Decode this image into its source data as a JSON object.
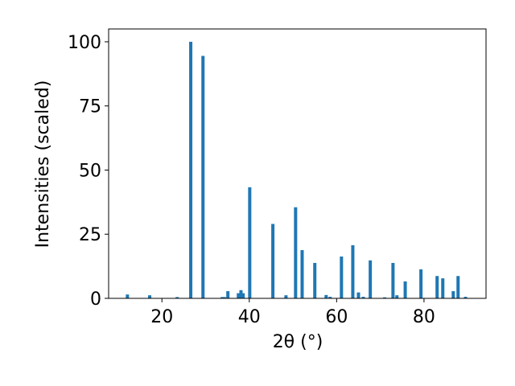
{
  "chart_data": {
    "type": "bar",
    "x_label": "2θ (°)",
    "y_label": "Intensities (scaled)",
    "x": [
      12.1,
      17.2,
      23.5,
      26.6,
      29.4,
      33.8,
      34.3,
      35.1,
      37.5,
      38.1,
      38.6,
      40.1,
      45.4,
      48.4,
      50.6,
      52.1,
      55.0,
      57.6,
      58.5,
      61.1,
      63.7,
      65.0,
      66.1,
      67.7,
      71.0,
      72.9,
      73.8,
      75.7,
      79.3,
      83.0,
      84.3,
      86.7,
      87.8,
      89.5
    ],
    "values": [
      1.5,
      1.2,
      0.5,
      100,
      94.5,
      0.5,
      0.5,
      2.8,
      2,
      3.2,
      2,
      43.3,
      29,
      1.2,
      35.5,
      18.8,
      13.8,
      1.3,
      0.6,
      16.3,
      20.7,
      2.3,
      0.6,
      14.8,
      0.4,
      13.8,
      1.2,
      6.6,
      11.3,
      8.7,
      7.8,
      2.8,
      8.7,
      0.6
    ],
    "color": "#1f77b4",
    "xlim": [
      7.8,
      94.2
    ],
    "xticks": [
      20,
      40,
      60,
      80
    ],
    "ylim": [
      0,
      105
    ],
    "yticks": [
      0,
      25,
      50,
      75,
      100
    ]
  }
}
